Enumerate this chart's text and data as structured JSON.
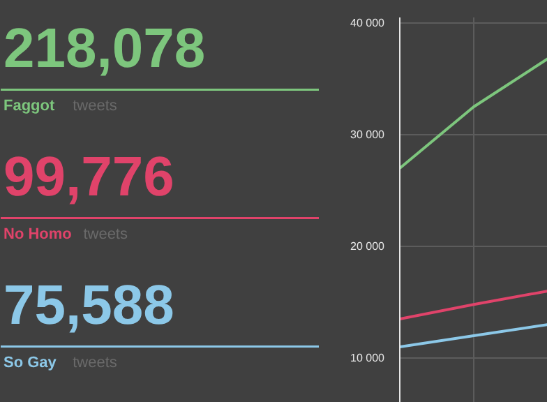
{
  "chart_data": [
    {
      "type": "other",
      "categories": [
        "Faggot",
        "No Homo",
        "So Gay"
      ],
      "colors": [
        "#7dc67d",
        "#e0436a",
        "#8cc8e8"
      ],
      "annotations": [
        "218,078",
        "99,776",
        "75,588",
        "tweets"
      ]
    },
    {
      "type": "line",
      "categories": [
        null,
        null,
        null
      ],
      "series": [
        {
          "color": "#7dc67d",
          "values": [
            27000,
            32500,
            36800
          ]
        },
        {
          "color": "#e0436a",
          "values": [
            13500,
            14800,
            16000
          ]
        },
        {
          "color": "#8cc8e8",
          "values": [
            11000,
            12000,
            13000
          ]
        }
      ],
      "ylim": [
        6000,
        40500
      ],
      "yticks": [
        {
          "value": 10000,
          "label": "10 000"
        },
        {
          "value": 20000,
          "label": "20 000"
        },
        {
          "value": 30000,
          "label": "30 000"
        },
        {
          "value": 40000,
          "label": "40 000"
        }
      ],
      "grid": true,
      "tick_labels": "y",
      "line_style": "solid",
      "marker": "none"
    }
  ]
}
